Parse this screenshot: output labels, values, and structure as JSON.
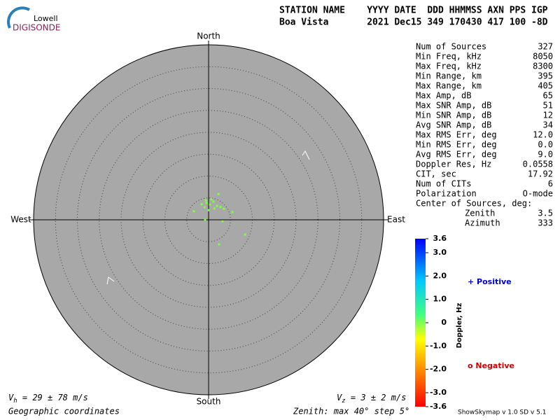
{
  "logo": {
    "top": "Lowell",
    "bottom": "DIGISONDE"
  },
  "header": {
    "line1": "STATION NAME    YYYY DATE  DDD HHMMSS AXN PPS IGP",
    "line2": "Boa Vista       2021 Dec15 349 170430 417 100 -8D"
  },
  "stats": [
    [
      "Num of Sources",
      "327"
    ],
    [
      "Min Freq, kHz",
      "8050"
    ],
    [
      "Max Freq, kHz",
      "8300"
    ],
    [
      "Min Range, km",
      "395"
    ],
    [
      "Max Range, km",
      "405"
    ],
    [
      "Max Amp, dB",
      "65"
    ],
    [
      "Max SNR Amp, dB",
      "51"
    ],
    [
      "Min SNR Amp, dB",
      "12"
    ],
    [
      "Avg SNR Amp, dB",
      "34"
    ],
    [
      "Max RMS Err, deg",
      "12.0"
    ],
    [
      "Min RMS Err, deg",
      "0.0"
    ],
    [
      "Avg RMS Err, deg",
      "9.0"
    ],
    [
      "Doppler Res, Hz",
      "0.0558"
    ],
    [
      "CIT, sec",
      "17.92"
    ],
    [
      "Num of CITs",
      "6"
    ],
    [
      "Polarization",
      "O-mode"
    ]
  ],
  "center": {
    "title": "Center of Sources, deg:",
    "rows": [
      [
        "Zenith",
        "3.5"
      ],
      [
        "Azimuth",
        "333"
      ]
    ]
  },
  "plot": {
    "directions": {
      "north": "North",
      "south": "South",
      "west": "West",
      "east": "East"
    },
    "zenith_max": 40,
    "zenith_step": 5,
    "color": "#80ff40",
    "sources": [
      {
        "zenith": 3.5,
        "azimuth": 5
      },
      {
        "zenith": 3.9,
        "azimuth": 353
      },
      {
        "zenith": 4.3,
        "azimuth": 15
      },
      {
        "zenith": 3.7,
        "azimuth": 31
      },
      {
        "zenith": 3.0,
        "azimuth": 342
      },
      {
        "zenith": 2.2,
        "azimuth": 0
      },
      {
        "zenith": 4.0,
        "azimuth": 43
      },
      {
        "zenith": 4.7,
        "azimuth": 8
      },
      {
        "zenith": 3.9,
        "azimuth": 336
      },
      {
        "zenith": 4.3,
        "azimuth": 54
      },
      {
        "zenith": 2.9,
        "azimuth": 27
      },
      {
        "zenith": 4.5,
        "azimuth": 352
      },
      {
        "zenith": 6.3,
        "azimuth": 21
      },
      {
        "zenith": 9.0,
        "azimuth": 112
      },
      {
        "zenith": 6.1,
        "azimuth": 157
      },
      {
        "zenith": 3.2,
        "azimuth": 96
      },
      {
        "zenith": 3.9,
        "azimuth": 300
      },
      {
        "zenith": 5.7,
        "azimuth": 72
      },
      {
        "zenith": 0.8,
        "azimuth": 270
      }
    ]
  },
  "colorbar": {
    "label": "Doppler, Hz",
    "lim": [
      -3.6,
      3.6
    ],
    "ticks": [
      {
        "value": 3.6,
        "label": "3.6"
      },
      {
        "value": 3.0,
        "label": "3.0"
      },
      {
        "value": 2.0,
        "label": "2.0"
      },
      {
        "value": 1.0,
        "label": "1.0"
      },
      0,
      {
        "value": -1.0,
        "label": "-1.0"
      },
      {
        "value": -2.0,
        "label": "-2.0"
      },
      {
        "value": -3.0,
        "label": "-3.0"
      },
      {
        "value": -3.6,
        "label": "-3.6"
      }
    ],
    "positive": "+ Positive",
    "negative": "o Negative"
  },
  "footer": {
    "vh": {
      "symbol": "V",
      "sub": "h",
      "rest": " = 29 ± 78 m/s"
    },
    "vz": {
      "symbol": "V",
      "sub": "z",
      "rest": " = 3 ± 2 m/s"
    },
    "coords": "Geographic coordinates",
    "zenith": "Zenith: max 40°  step 5°",
    "version": "ShowSkymap v 1.0  SD v 5.1"
  }
}
